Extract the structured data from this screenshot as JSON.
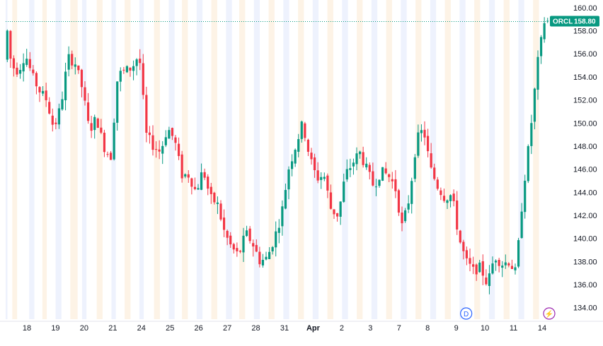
{
  "chart_data": {
    "type": "candlestick",
    "symbol": "ORCL",
    "last_price": "158.80",
    "price_color": "#089981",
    "up_color": "#089981",
    "down_color": "#f23645",
    "ylim": [
      133,
      160.3
    ],
    "yticks": [
      "134.00",
      "136.00",
      "138.00",
      "140.00",
      "142.00",
      "144.00",
      "146.00",
      "148.00",
      "150.00",
      "152.00",
      "154.00",
      "156.00",
      "158.00",
      "160.00"
    ],
    "xticks": [
      {
        "label": "18",
        "i": 0
      },
      {
        "label": "19",
        "i": 1
      },
      {
        "label": "20",
        "i": 2
      },
      {
        "label": "21",
        "i": 3
      },
      {
        "label": "24",
        "i": 4
      },
      {
        "label": "25",
        "i": 5
      },
      {
        "label": "26",
        "i": 6
      },
      {
        "label": "27",
        "i": 7
      },
      {
        "label": "28",
        "i": 8
      },
      {
        "label": "31",
        "i": 9
      },
      {
        "label": "Apr",
        "i": 10,
        "bold": true
      },
      {
        "label": "2",
        "i": 11
      },
      {
        "label": "3",
        "i": 12
      },
      {
        "label": "7",
        "i": 13
      },
      {
        "label": "8",
        "i": 14
      },
      {
        "label": "9",
        "i": 15
      },
      {
        "label": "10",
        "i": 16
      },
      {
        "label": "11",
        "i": 17
      },
      {
        "label": "14",
        "i": 18
      }
    ],
    "anchors": [
      [
        0,
        155.5
      ],
      [
        0.5,
        158.2
      ],
      [
        1,
        155.0
      ],
      [
        2,
        154.5
      ],
      [
        3,
        156.0
      ],
      [
        4,
        154.0
      ],
      [
        5,
        152.8
      ],
      [
        6,
        152.0
      ],
      [
        7,
        149.5
      ],
      [
        8,
        151.5
      ],
      [
        9,
        155.7
      ],
      [
        10,
        155.2
      ],
      [
        11,
        153.0
      ],
      [
        12,
        149.3
      ],
      [
        13,
        150.5
      ],
      [
        14,
        148.0
      ],
      [
        15,
        147.0
      ],
      [
        16,
        154.2
      ],
      [
        17,
        154.5
      ],
      [
        18,
        154.8
      ],
      [
        19,
        156.0
      ],
      [
        20,
        149.0
      ],
      [
        21,
        148.0
      ],
      [
        22,
        147.5
      ],
      [
        23,
        149.6
      ],
      [
        24,
        148.5
      ],
      [
        25,
        145.5
      ],
      [
        26,
        145.5
      ],
      [
        27,
        144.0
      ],
      [
        28,
        146.0
      ],
      [
        29,
        143.5
      ],
      [
        30,
        143.0
      ],
      [
        31,
        140.5
      ],
      [
        32,
        139.2
      ],
      [
        33,
        138.5
      ],
      [
        34,
        140.5
      ],
      [
        35,
        139.5
      ],
      [
        36,
        138.0
      ],
      [
        37,
        138.3
      ],
      [
        38,
        140.0
      ],
      [
        39,
        142.0
      ],
      [
        40,
        146.0
      ],
      [
        41,
        148.0
      ],
      [
        42,
        150.0
      ],
      [
        43,
        147.0
      ],
      [
        44,
        145.2
      ],
      [
        45,
        145.5
      ],
      [
        46,
        142.5
      ],
      [
        47,
        142.0
      ],
      [
        48,
        145.5
      ],
      [
        49,
        146.5
      ],
      [
        50,
        147.5
      ],
      [
        51,
        146.0
      ],
      [
        52,
        144.5
      ],
      [
        53,
        145.8
      ],
      [
        54,
        145.5
      ],
      [
        55,
        144.5
      ],
      [
        56,
        141.0
      ],
      [
        57,
        143.5
      ],
      [
        58,
        148.5
      ],
      [
        59,
        149.5
      ],
      [
        60,
        146.0
      ],
      [
        61,
        144.5
      ],
      [
        62,
        143.5
      ],
      [
        63,
        143.8
      ],
      [
        64,
        140.0
      ],
      [
        65,
        138.0
      ],
      [
        66,
        137.2
      ],
      [
        67,
        137.5
      ],
      [
        68,
        136.0
      ],
      [
        69,
        138.5
      ],
      [
        70,
        137.8
      ],
      [
        71,
        138.0
      ],
      [
        72,
        137.0
      ],
      [
        73,
        144.0
      ],
      [
        74,
        149.0
      ],
      [
        75,
        155.0
      ],
      [
        76,
        158.8
      ]
    ],
    "n_candles": 168,
    "session_bands": [
      {
        "date": "18",
        "pre": [
          0.0,
          1.2
        ],
        "post": [
          4.5,
          7.8
        ]
      },
      {
        "date": "19",
        "pre": [
          16.0,
          19.5
        ],
        "post": [
          25.0,
          28.0
        ]
      },
      {
        "date": "20",
        "pre": [
          34.0,
          38.0
        ],
        "post": [
          44.0,
          49.0
        ]
      },
      {
        "date": "21",
        "pre": [
          52.0,
          55.0
        ],
        "post": [
          62.0,
          66.0
        ]
      },
      {
        "date": "24",
        "pre": [
          72.0,
          75.0
        ],
        "post": [
          81.0,
          85.0
        ]
      },
      {
        "date": "25",
        "pre": [
          91.0,
          94.0
        ],
        "post": [
          101.0,
          105.0
        ]
      },
      {
        "date": "26",
        "pre": [
          111.0,
          115.0
        ],
        "post": [
          120.0,
          124.0
        ]
      },
      {
        "date": "27",
        "pre": [
          130.0,
          134.0
        ],
        "post": [
          140.0,
          144.0
        ]
      },
      {
        "date": "28",
        "pre": [
          150.0,
          154.0
        ],
        "post": [
          159.0,
          163.0
        ]
      },
      {
        "date": "31",
        "pre": [
          169.0,
          173.0
        ],
        "post": [
          179.0,
          183.0
        ]
      },
      {
        "date": "Apr",
        "pre": [
          189.0,
          193.0
        ],
        "post": [
          199.0,
          203.0
        ]
      },
      {
        "date": "2",
        "pre": [
          209.0,
          213.0
        ],
        "post": [
          219.0,
          223.0
        ]
      },
      {
        "date": "3",
        "pre": [
          229.0,
          233.0
        ],
        "post": [
          239.0,
          243.0
        ]
      },
      {
        "date": "7",
        "pre": [
          249.0,
          253.0
        ],
        "post": [
          259.0,
          263.0
        ]
      },
      {
        "date": "8",
        "pre": [
          269.0,
          273.0
        ],
        "post": [
          279.0,
          283.0
        ]
      },
      {
        "date": "9",
        "pre": [
          289.0,
          293.0
        ],
        "post": [
          299.0,
          303.0
        ]
      },
      {
        "date": "10",
        "pre": [
          309.0,
          313.0
        ],
        "post": [
          319.0,
          323.0
        ]
      },
      {
        "date": "11",
        "pre": [
          329.0,
          333.0
        ],
        "post": [
          339.0,
          343.0
        ]
      },
      {
        "date": "14",
        "pre": [
          349.0,
          353.0
        ],
        "post": [
          359.0,
          363.0
        ]
      }
    ],
    "markers": [
      {
        "label": "D",
        "near": "9",
        "kind": "dividend"
      },
      {
        "label": "⚡",
        "near": "14",
        "kind": "earnings"
      }
    ],
    "grid": false
  }
}
